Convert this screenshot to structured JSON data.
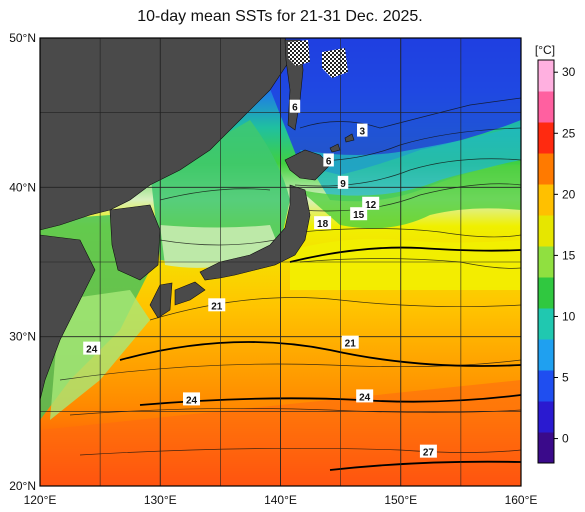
{
  "title": "10-day mean SSTs for 21-31 Dec. 2025.",
  "map": {
    "lon_labels": [
      "120°E",
      "130°E",
      "140°E",
      "150°E",
      "160°E"
    ],
    "lat_labels": [
      "50°N",
      "40°N",
      "30°N",
      "20°N"
    ],
    "lon_range": [
      120,
      160
    ],
    "lat_range": [
      20,
      50
    ],
    "land_color": "#4a4a4a",
    "grid_color": "#222222"
  },
  "colorbar": {
    "unit_label": "[°C]",
    "tick_labels": [
      "30",
      "25",
      "20",
      "15",
      "10",
      "5",
      "0"
    ],
    "tick_values": [
      30,
      25,
      20,
      15,
      10,
      5,
      0
    ],
    "range": [
      -2,
      31
    ],
    "colors": [
      "#3a0a8a",
      "#2a1ad0",
      "#1f4ef0",
      "#1fa0f0",
      "#20c8b0",
      "#30c840",
      "#90e040",
      "#e6e600",
      "#ffc000",
      "#ff7a00",
      "#ff2a10",
      "#ff60a0",
      "#ffb0e0"
    ]
  },
  "isotherm_labels": [
    {
      "text": "3",
      "lon": 146.8,
      "lat": 43.8
    },
    {
      "text": "6",
      "lon": 141.2,
      "lat": 45.4
    },
    {
      "text": "6",
      "lon": 144.0,
      "lat": 41.8
    },
    {
      "text": "9",
      "lon": 145.2,
      "lat": 40.3
    },
    {
      "text": "12",
      "lon": 147.5,
      "lat": 38.9
    },
    {
      "text": "15",
      "lon": 146.5,
      "lat": 38.2
    },
    {
      "text": "18",
      "lon": 143.5,
      "lat": 37.6
    },
    {
      "text": "21",
      "lon": 134.7,
      "lat": 32.1
    },
    {
      "text": "21",
      "lon": 145.8,
      "lat": 29.6
    },
    {
      "text": "24",
      "lon": 124.3,
      "lat": 29.2
    },
    {
      "text": "24",
      "lon": 132.6,
      "lat": 25.8
    },
    {
      "text": "24",
      "lon": 147.0,
      "lat": 26.0
    },
    {
      "text": "27",
      "lon": 152.3,
      "lat": 22.3
    }
  ]
}
